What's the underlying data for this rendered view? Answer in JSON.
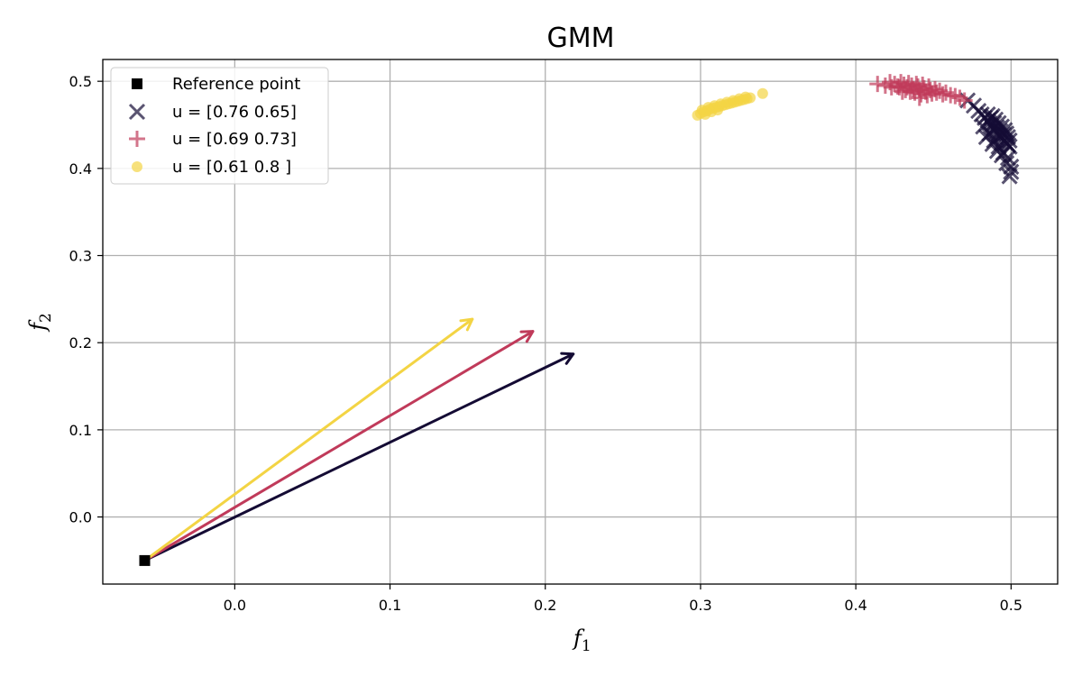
{
  "chart_data": {
    "type": "scatter",
    "title": "GMM",
    "xlabel": "f",
    "xlabel_sub": "1",
    "ylabel": "f",
    "ylabel_sub": "2",
    "xlim": [
      -0.085,
      0.53
    ],
    "ylim": [
      -0.077,
      0.525
    ],
    "xticks": [
      0.0,
      0.1,
      0.2,
      0.3,
      0.4,
      0.5
    ],
    "yticks": [
      0.0,
      0.1,
      0.2,
      0.3,
      0.4,
      0.5
    ],
    "xtick_labels": [
      "0.0",
      "0.1",
      "0.2",
      "0.3",
      "0.4",
      "0.5"
    ],
    "ytick_labels": [
      "0.0",
      "0.1",
      "0.2",
      "0.3",
      "0.4",
      "0.5"
    ],
    "grid": true,
    "legend_position": "top-left",
    "reference_point": {
      "name": "Reference point",
      "x": -0.058,
      "y": -0.05,
      "color": "#000000",
      "marker": "square"
    },
    "series": [
      {
        "name": "u = [0.76 0.65]",
        "marker": "x",
        "color": "#140b34",
        "arrow_end": [
          0.218,
          0.187
        ],
        "points": [
          [
            0.472,
            0.478
          ],
          [
            0.476,
            0.472
          ],
          [
            0.479,
            0.466
          ],
          [
            0.481,
            0.462
          ],
          [
            0.483,
            0.458
          ],
          [
            0.485,
            0.455
          ],
          [
            0.486,
            0.452
          ],
          [
            0.487,
            0.449
          ],
          [
            0.488,
            0.447
          ],
          [
            0.489,
            0.445
          ],
          [
            0.49,
            0.443
          ],
          [
            0.491,
            0.441
          ],
          [
            0.492,
            0.439
          ],
          [
            0.493,
            0.437
          ],
          [
            0.494,
            0.435
          ],
          [
            0.495,
            0.433
          ],
          [
            0.496,
            0.431
          ],
          [
            0.497,
            0.429
          ],
          [
            0.498,
            0.427
          ],
          [
            0.499,
            0.425
          ],
          [
            0.488,
            0.46
          ],
          [
            0.49,
            0.456
          ],
          [
            0.492,
            0.452
          ],
          [
            0.494,
            0.448
          ],
          [
            0.496,
            0.444
          ],
          [
            0.497,
            0.44
          ],
          [
            0.498,
            0.436
          ],
          [
            0.499,
            0.432
          ],
          [
            0.485,
            0.462
          ],
          [
            0.487,
            0.458
          ],
          [
            0.489,
            0.452
          ],
          [
            0.491,
            0.447
          ],
          [
            0.493,
            0.443
          ],
          [
            0.495,
            0.439
          ],
          [
            0.482,
            0.448
          ],
          [
            0.486,
            0.44
          ],
          [
            0.489,
            0.432
          ],
          [
            0.492,
            0.425
          ],
          [
            0.495,
            0.418
          ],
          [
            0.498,
            0.412
          ],
          [
            0.497,
            0.406
          ],
          [
            0.5,
            0.402
          ],
          [
            0.5,
            0.396
          ],
          [
            0.499,
            0.391
          ],
          [
            0.494,
            0.415
          ],
          [
            0.491,
            0.42
          ],
          [
            0.488,
            0.428
          ],
          [
            0.484,
            0.436
          ]
        ]
      },
      {
        "name": "u = [0.69 0.73]",
        "marker": "plus",
        "color": "#c03a5a",
        "arrow_end": [
          0.192,
          0.213
        ],
        "points": [
          [
            0.414,
            0.497
          ],
          [
            0.419,
            0.495
          ],
          [
            0.422,
            0.499
          ],
          [
            0.425,
            0.497
          ],
          [
            0.427,
            0.494
          ],
          [
            0.429,
            0.499
          ],
          [
            0.431,
            0.496
          ],
          [
            0.433,
            0.493
          ],
          [
            0.434,
            0.498
          ],
          [
            0.436,
            0.495
          ],
          [
            0.437,
            0.491
          ],
          [
            0.439,
            0.497
          ],
          [
            0.44,
            0.494
          ],
          [
            0.441,
            0.49
          ],
          [
            0.443,
            0.496
          ],
          [
            0.444,
            0.492
          ],
          [
            0.445,
            0.488
          ],
          [
            0.447,
            0.494
          ],
          [
            0.448,
            0.49
          ],
          [
            0.449,
            0.486
          ],
          [
            0.451,
            0.491
          ],
          [
            0.452,
            0.487
          ],
          [
            0.454,
            0.489
          ],
          [
            0.456,
            0.485
          ],
          [
            0.458,
            0.487
          ],
          [
            0.461,
            0.484
          ],
          [
            0.464,
            0.483
          ],
          [
            0.467,
            0.481
          ],
          [
            0.47,
            0.478
          ],
          [
            0.428,
            0.493
          ],
          [
            0.432,
            0.49
          ],
          [
            0.435,
            0.488
          ],
          [
            0.438,
            0.487
          ],
          [
            0.442,
            0.485
          ],
          [
            0.446,
            0.484
          ],
          [
            0.423,
            0.493
          ],
          [
            0.43,
            0.488
          ],
          [
            0.441,
            0.481
          ]
        ]
      },
      {
        "name": "u = [0.61 0.8 ]",
        "marker": "circle",
        "color": "#f3d444",
        "arrow_end": [
          0.153,
          0.227
        ],
        "points": [
          [
            0.298,
            0.461
          ],
          [
            0.3,
            0.463
          ],
          [
            0.302,
            0.465
          ],
          [
            0.304,
            0.466
          ],
          [
            0.306,
            0.468
          ],
          [
            0.308,
            0.469
          ],
          [
            0.31,
            0.47
          ],
          [
            0.312,
            0.471
          ],
          [
            0.314,
            0.472
          ],
          [
            0.316,
            0.473
          ],
          [
            0.318,
            0.474
          ],
          [
            0.32,
            0.475
          ],
          [
            0.322,
            0.476
          ],
          [
            0.324,
            0.477
          ],
          [
            0.326,
            0.478
          ],
          [
            0.328,
            0.479
          ],
          [
            0.33,
            0.48
          ],
          [
            0.332,
            0.481
          ],
          [
            0.301,
            0.467
          ],
          [
            0.305,
            0.47
          ],
          [
            0.309,
            0.472
          ],
          [
            0.313,
            0.474
          ],
          [
            0.317,
            0.476
          ],
          [
            0.321,
            0.478
          ],
          [
            0.325,
            0.48
          ],
          [
            0.329,
            0.482
          ],
          [
            0.34,
            0.486
          ],
          [
            0.303,
            0.462
          ],
          [
            0.307,
            0.465
          ],
          [
            0.311,
            0.467
          ]
        ]
      }
    ]
  }
}
